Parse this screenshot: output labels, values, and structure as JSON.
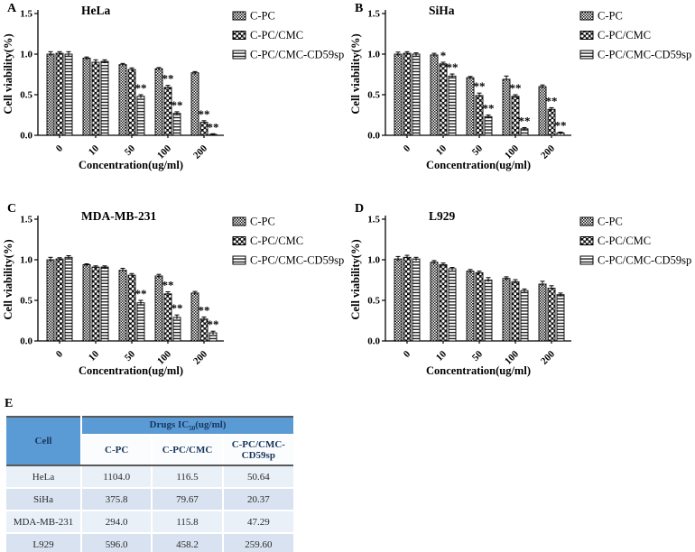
{
  "chart_data": [
    {
      "letter": "A",
      "type": "bar",
      "title": "HeLa",
      "xlabel": "Concentration(ug/ml)",
      "ylabel": "Cell viability(%)",
      "ylim": [
        0,
        1.5
      ],
      "yticks": [
        "0.0",
        "0.5",
        "1.0",
        "1.5"
      ],
      "categories": [
        "0",
        "10",
        "50",
        "100",
        "200"
      ],
      "legend_position": "right",
      "grid": false,
      "series": [
        {
          "name": "C-PC",
          "pattern": "stipple",
          "values": [
            1.0,
            0.95,
            0.87,
            0.82,
            0.77
          ],
          "errors": [
            0.03,
            0.015,
            0.015,
            0.015,
            0.015
          ],
          "sig": [
            "",
            "",
            "",
            "",
            ""
          ]
        },
        {
          "name": "C-PC/CMC",
          "pattern": "dots",
          "values": [
            1.01,
            0.9,
            0.81,
            0.59,
            0.16
          ],
          "errors": [
            0.02,
            0.03,
            0.02,
            0.025,
            0.02
          ],
          "sig": [
            "",
            "",
            "",
            "**",
            "**"
          ]
        },
        {
          "name": "C-PC/CMC-CD59sp",
          "pattern": "hstripes",
          "values": [
            1.0,
            0.91,
            0.48,
            0.27,
            0.01
          ],
          "errors": [
            0.03,
            0.02,
            0.02,
            0.02,
            0.008
          ],
          "sig": [
            "",
            "",
            "**",
            "**",
            "**"
          ]
        }
      ]
    },
    {
      "letter": "B",
      "type": "bar",
      "title": "SiHa",
      "xlabel": "Concentration(ug/ml)",
      "ylabel": "Cell viability(%)",
      "ylim": [
        0,
        1.5
      ],
      "yticks": [
        "0.0",
        "0.5",
        "1.0",
        "1.5"
      ],
      "categories": [
        "0",
        "10",
        "50",
        "100",
        "200"
      ],
      "legend_position": "right",
      "grid": false,
      "series": [
        {
          "name": "C-PC",
          "pattern": "stipple",
          "values": [
            1.0,
            0.99,
            0.71,
            0.69,
            0.6
          ],
          "errors": [
            0.025,
            0.02,
            0.015,
            0.04,
            0.02
          ],
          "sig": [
            "",
            "",
            "",
            "",
            ""
          ]
        },
        {
          "name": "C-PC/CMC",
          "pattern": "dots",
          "values": [
            1.01,
            0.88,
            0.49,
            0.48,
            0.32
          ],
          "errors": [
            0.02,
            0.02,
            0.03,
            0.02,
            0.02
          ],
          "sig": [
            "",
            "*",
            "**",
            "**",
            "**"
          ]
        },
        {
          "name": "C-PC/CMC-CD59sp",
          "pattern": "hstripes",
          "values": [
            1.0,
            0.73,
            0.23,
            0.08,
            0.03
          ],
          "errors": [
            0.015,
            0.025,
            0.02,
            0.015,
            0.01
          ],
          "sig": [
            "",
            "**",
            "**",
            "**",
            "**"
          ]
        }
      ]
    },
    {
      "letter": "C",
      "type": "bar",
      "title": "MDA-MB-231",
      "xlabel": "Concentration(ug/ml)",
      "ylabel": "Cell viability(%)",
      "ylim": [
        0,
        1.5
      ],
      "yticks": [
        "0.0",
        "0.5",
        "1.0",
        "1.5"
      ],
      "categories": [
        "0",
        "10",
        "50",
        "100",
        "200"
      ],
      "legend_position": "right",
      "grid": false,
      "series": [
        {
          "name": "C-PC",
          "pattern": "stipple",
          "values": [
            1.0,
            0.94,
            0.87,
            0.8,
            0.59
          ],
          "errors": [
            0.03,
            0.01,
            0.025,
            0.02,
            0.02
          ],
          "sig": [
            "",
            "",
            "",
            "",
            ""
          ]
        },
        {
          "name": "C-PC/CMC",
          "pattern": "dots",
          "values": [
            1.01,
            0.91,
            0.81,
            0.58,
            0.27
          ],
          "errors": [
            0.015,
            0.015,
            0.02,
            0.025,
            0.025
          ],
          "sig": [
            "",
            "",
            "",
            "**",
            "**"
          ]
        },
        {
          "name": "C-PC/CMC-CD59sp",
          "pattern": "hstripes",
          "values": [
            1.03,
            0.91,
            0.47,
            0.29,
            0.1
          ],
          "errors": [
            0.02,
            0.015,
            0.03,
            0.03,
            0.02
          ],
          "sig": [
            "",
            "",
            "**",
            "**",
            "**"
          ]
        }
      ]
    },
    {
      "letter": "D",
      "type": "bar",
      "title": "L929",
      "xlabel": "Concentration(ug/ml)",
      "ylabel": "Cell viability(%)",
      "ylim": [
        0,
        1.5
      ],
      "yticks": [
        "0.0",
        "0.5",
        "1.0",
        "1.5"
      ],
      "categories": [
        "0",
        "10",
        "50",
        "100",
        "200"
      ],
      "legend_position": "right",
      "grid": false,
      "series": [
        {
          "name": "C-PC",
          "pattern": "stipple",
          "values": [
            1.01,
            0.97,
            0.86,
            0.77,
            0.7
          ],
          "errors": [
            0.03,
            0.02,
            0.02,
            0.02,
            0.035
          ],
          "sig": [
            "",
            "",
            "",
            "",
            ""
          ]
        },
        {
          "name": "C-PC/CMC",
          "pattern": "dots",
          "values": [
            1.03,
            0.94,
            0.84,
            0.73,
            0.65
          ],
          "errors": [
            0.025,
            0.02,
            0.02,
            0.025,
            0.03
          ],
          "sig": [
            "",
            "",
            "",
            "",
            ""
          ]
        },
        {
          "name": "C-PC/CMC-CD59sp",
          "pattern": "hstripes",
          "values": [
            1.01,
            0.89,
            0.75,
            0.62,
            0.57
          ],
          "errors": [
            0.02,
            0.015,
            0.03,
            0.02,
            0.02
          ],
          "sig": [
            "",
            "",
            "",
            "",
            ""
          ]
        }
      ]
    }
  ],
  "table": {
    "letter": "E",
    "header": {
      "cell": "Cell",
      "drugs_prefix": "Drugs  IC",
      "drugs_sub": "50",
      "drugs_suffix": "(ug/ml)",
      "columns": [
        "C-PC",
        "C-PC/CMC",
        "C-PC/CMC-CD59sp"
      ]
    },
    "rows": [
      {
        "cell": "HeLa",
        "values": [
          "1104.0",
          "116.5",
          "50.64"
        ]
      },
      {
        "cell": "SiHa",
        "values": [
          "375.8",
          "79.67",
          "20.37"
        ]
      },
      {
        "cell": "MDA-MB-231",
        "values": [
          "294.0",
          "115.8",
          "47.29"
        ]
      },
      {
        "cell": "L929",
        "values": [
          "596.0",
          "458.2",
          "259.60"
        ]
      }
    ],
    "colors": {
      "header_bg": "#5b9bd5",
      "header_text": "#17365d",
      "row_light": "#eaf0f8",
      "row_dark": "#d9e2f0",
      "border_dark": "#595959"
    }
  }
}
